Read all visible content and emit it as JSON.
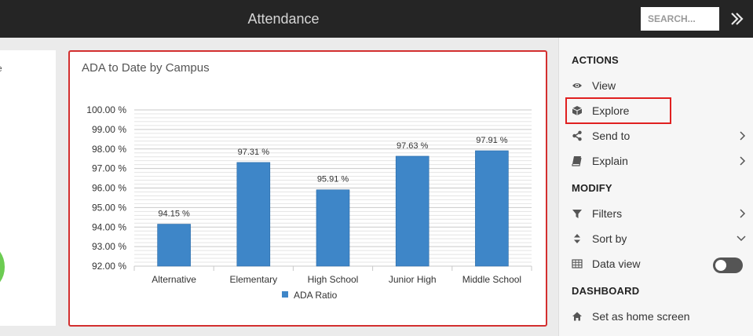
{
  "header": {
    "title": "Attendance",
    "search_placeholder": "SEARCH..."
  },
  "left_card": {
    "fragment_text": "e"
  },
  "chart_data": {
    "type": "bar",
    "title": "ADA to Date by Campus",
    "categories": [
      "Alternative",
      "Elementary",
      "High School",
      "Junior High",
      "Middle School"
    ],
    "series": [
      {
        "name": "ADA Ratio",
        "values": [
          94.15,
          97.31,
          95.91,
          97.63,
          97.91
        ]
      }
    ],
    "data_labels": [
      "94.15 %",
      "97.31 %",
      "95.91 %",
      "97.63 %",
      "97.91 %"
    ],
    "y_ticks": [
      "92.00 %",
      "93.00 %",
      "94.00 %",
      "95.00 %",
      "96.00 %",
      "97.00 %",
      "98.00 %",
      "99.00 %",
      "100.00 %"
    ],
    "ylim": [
      92,
      100
    ],
    "grid": true,
    "legend_position": "bottom",
    "bar_color": "#3e86c8"
  },
  "panel": {
    "actions_title": "ACTIONS",
    "modify_title": "MODIFY",
    "dashboard_title": "DASHBOARD",
    "items": {
      "view": "View",
      "explore": "Explore",
      "send_to": "Send to",
      "explain": "Explain",
      "filters": "Filters",
      "sort_by": "Sort by",
      "data_view": "Data view",
      "set_home": "Set as home screen"
    }
  }
}
